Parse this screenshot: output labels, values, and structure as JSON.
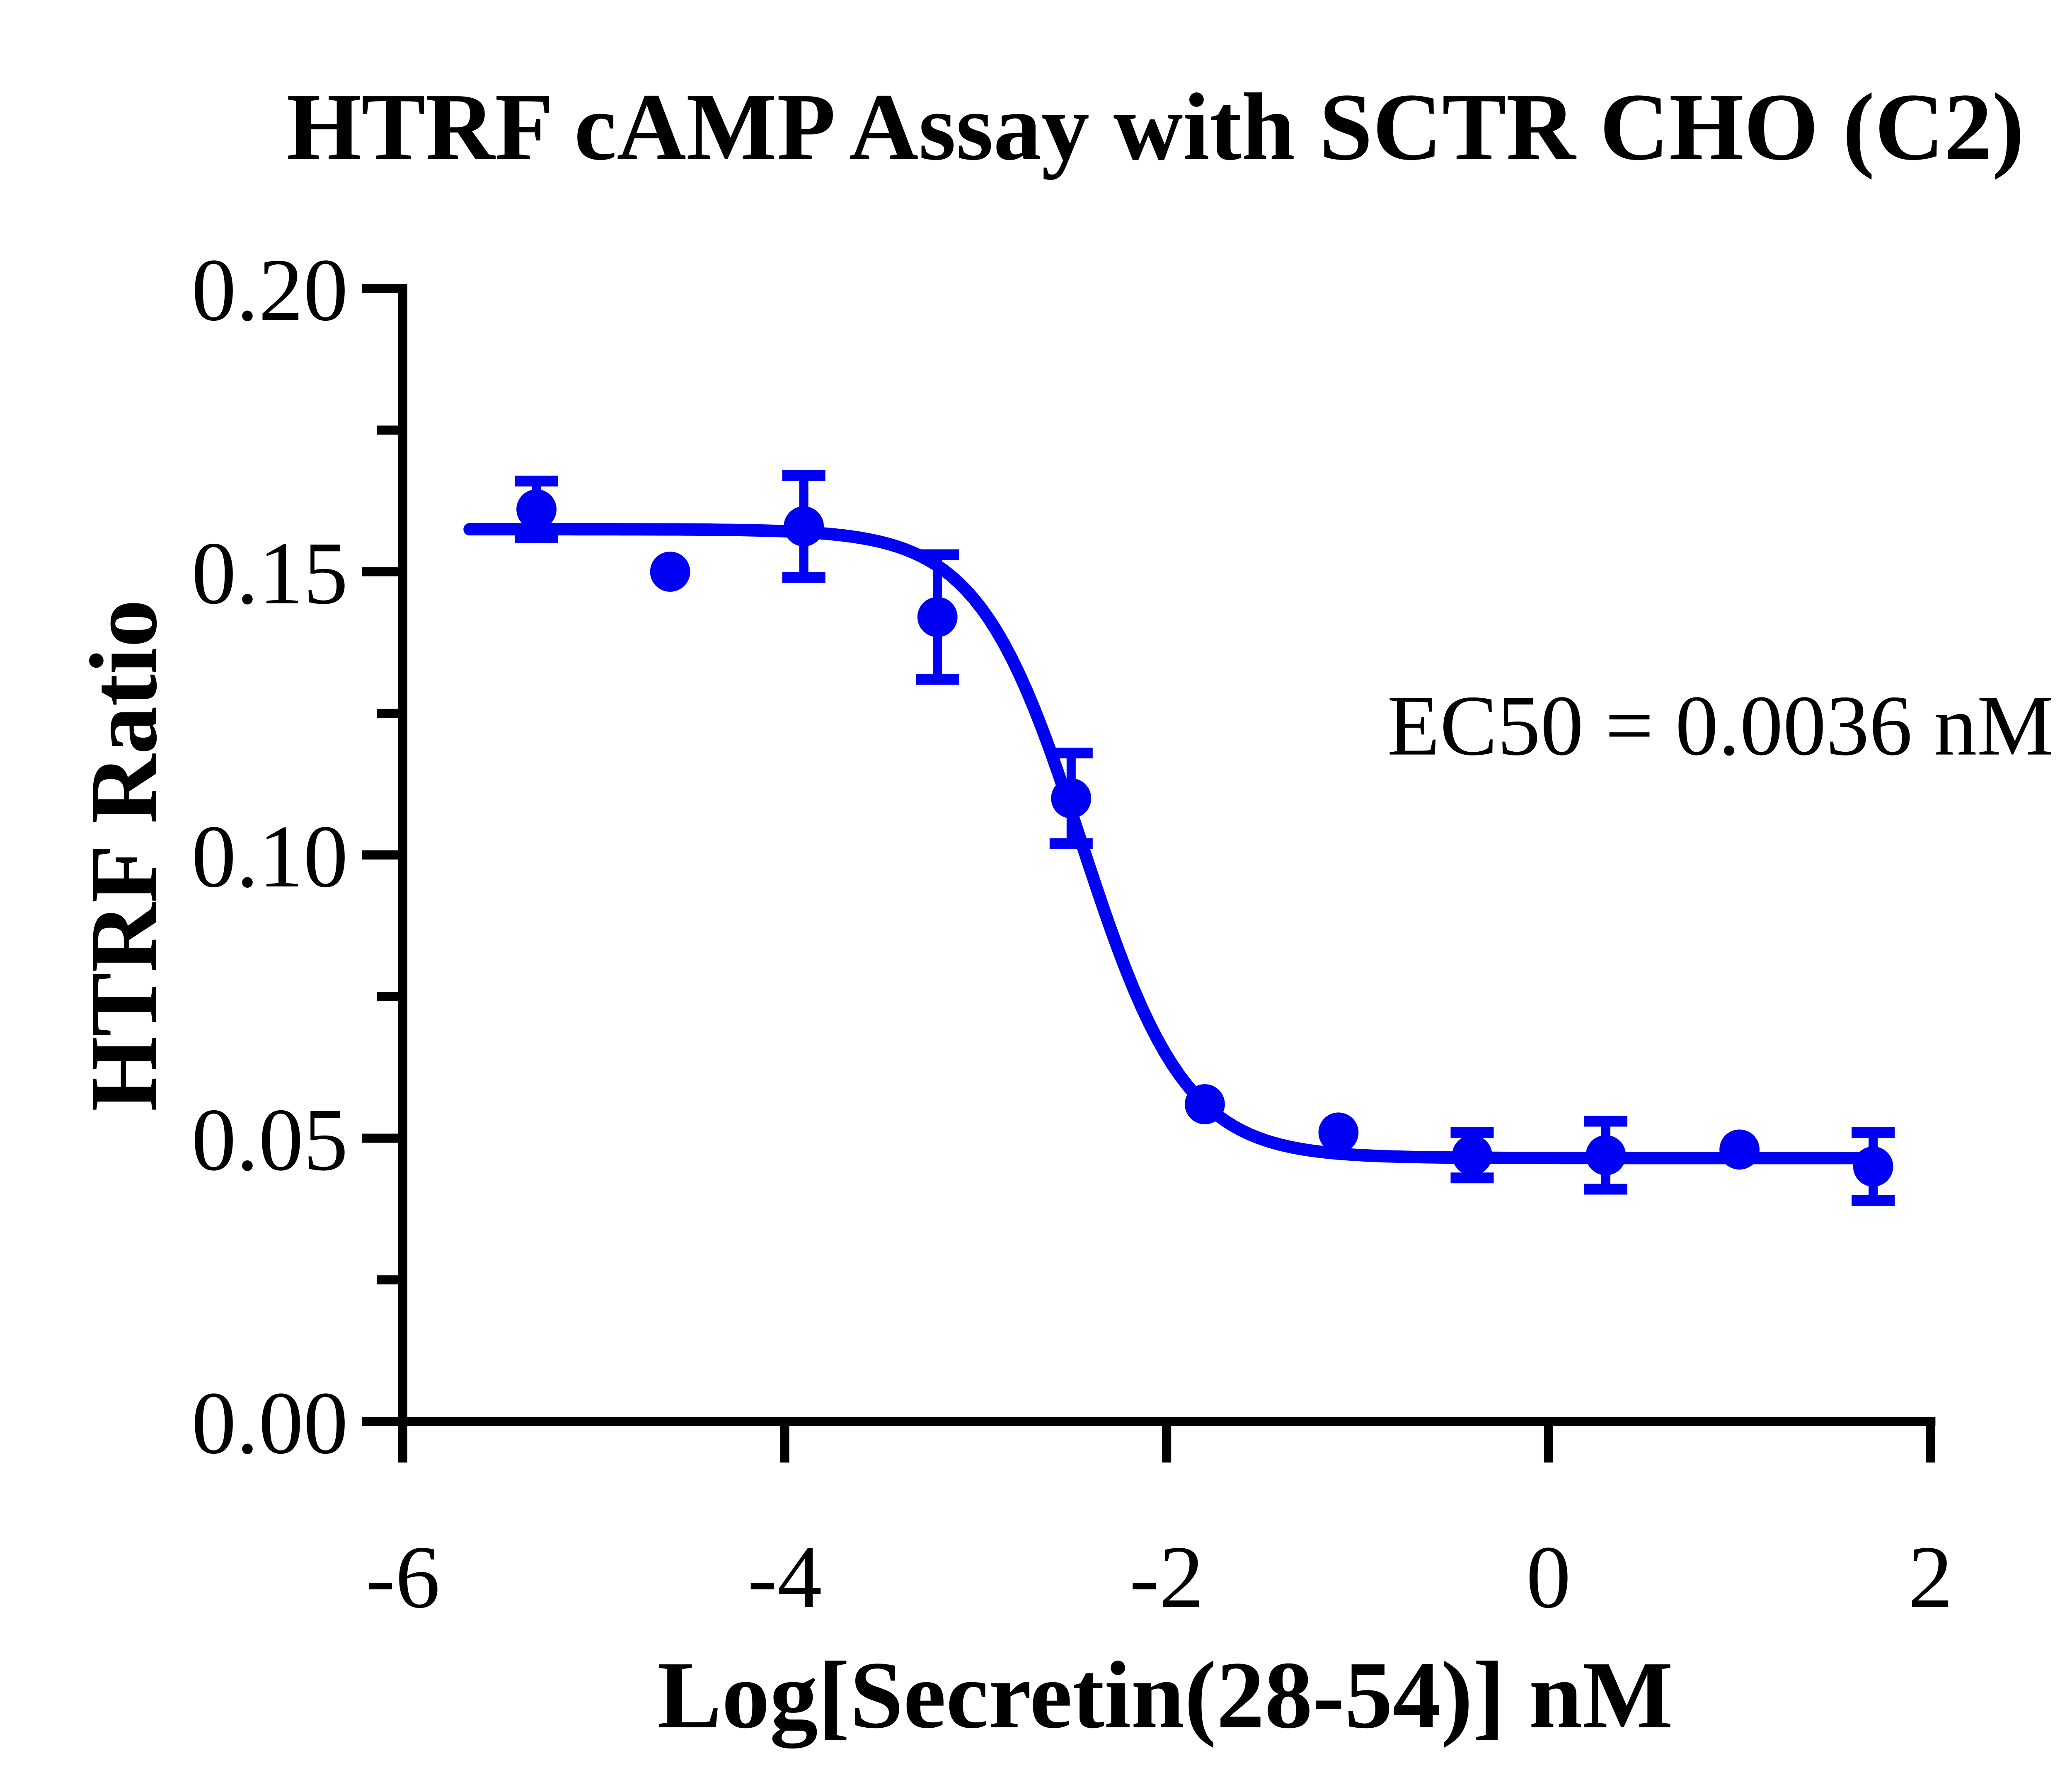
{
  "figure": {
    "background": "#ffffff",
    "axis_color": "#000000",
    "series_color": "#0000F5"
  },
  "chart_data": {
    "type": "scatter",
    "title": "HTRF cAMP Assay with SCTR CHO (C2)",
    "xlabel": "Log[Secretin(28-54)] nM",
    "ylabel": "HTRF Ratio",
    "xlim": [
      -6,
      2
    ],
    "ylim": [
      0,
      0.2
    ],
    "x_ticks": [
      -6,
      -4,
      -2,
      0,
      2
    ],
    "x_tick_labels": [
      "-6",
      "-4",
      "-2",
      "0",
      "2"
    ],
    "y_ticks": [
      0,
      0.05,
      0.1,
      0.15,
      0.2
    ],
    "y_tick_labels": [
      "0.00",
      "0.05",
      "0.10",
      "0.15",
      "0.20"
    ],
    "y_minor_ticks": [
      0.025,
      0.075,
      0.125,
      0.175
    ],
    "grid": false,
    "legend_position": "none",
    "series": [
      {
        "name": "Secretin(28-54)",
        "marker": "circle",
        "color": "#0000F5",
        "x": [
          -5.3,
          -4.6,
          -3.9,
          -3.2,
          -2.5,
          -1.8,
          -1.1,
          -0.4,
          0.3,
          1.0,
          1.7
        ],
        "y": [
          0.161,
          0.15,
          0.158,
          0.142,
          0.11,
          0.056,
          0.051,
          0.047,
          0.047,
          0.048,
          0.045
        ],
        "yerr": [
          0.005,
          0,
          0.009,
          0.011,
          0.008,
          0,
          0,
          0.004,
          0.006,
          0,
          0.006
        ]
      }
    ],
    "fit_curve": {
      "model": "4PL-sigmoid",
      "top": 0.1575,
      "bottom": 0.0465,
      "logEC50": -2.444,
      "hill": 1.6,
      "x_start": -5.65,
      "x_end": 1.78
    },
    "annotation": {
      "text": "EC50 = 0.0036 nM",
      "x": 0.9,
      "y": 0.123
    },
    "ec50_nM": 0.0036
  }
}
